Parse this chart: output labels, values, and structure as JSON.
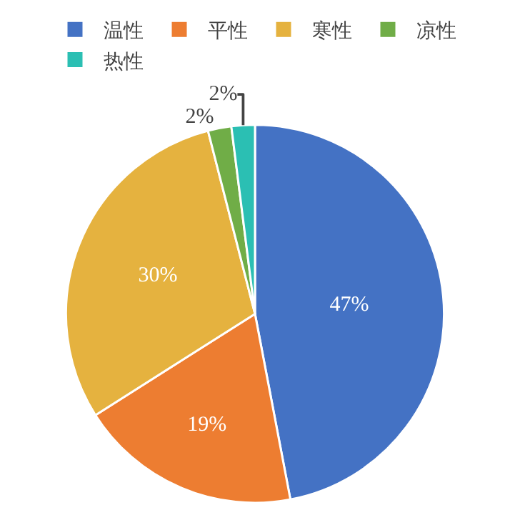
{
  "chart_data": {
    "type": "pie",
    "categories": [
      "温性",
      "平性",
      "寒性",
      "凉性",
      "热性"
    ],
    "values": [
      47,
      19,
      30,
      2,
      2
    ],
    "value_labels": [
      "47%",
      "19%",
      "30%",
      "2%",
      "2%"
    ],
    "colors": [
      "#4472c4",
      "#ed7d31",
      "#e5b23f",
      "#70ad47",
      "#2bbfb3"
    ],
    "legend": "top"
  }
}
